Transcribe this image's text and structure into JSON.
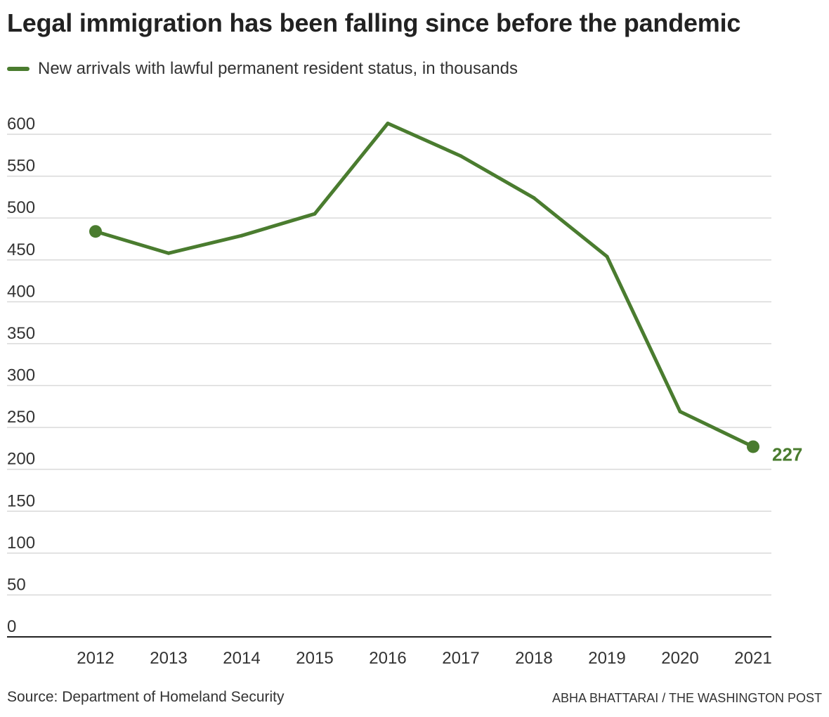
{
  "title": "Legal immigration has been falling since before the pandemic",
  "legend": {
    "label": "New arrivals with lawful permanent resident status, in thousands"
  },
  "source": "Source: Department of Homeland Security",
  "credit": "ABHA BHATTARAI / THE WASHINGTON POST",
  "colors": {
    "series": "#4a7c2f",
    "grid": "#d9d9d9",
    "axis": "#222222",
    "text": "#333333"
  },
  "chart_data": {
    "type": "line",
    "title": "Legal immigration has been falling since before the pandemic",
    "xlabel": "",
    "ylabel": "",
    "x": [
      "2012",
      "2013",
      "2014",
      "2015",
      "2016",
      "2017",
      "2018",
      "2019",
      "2020",
      "2021"
    ],
    "series": [
      {
        "name": "New arrivals with lawful permanent resident status, in thousands",
        "values": [
          484,
          458,
          479,
          505,
          613,
          574,
          524,
          454,
          269,
          227
        ]
      }
    ],
    "ylim": [
      0,
      600
    ],
    "yticks": [
      0,
      50,
      100,
      150,
      200,
      250,
      300,
      350,
      400,
      450,
      500,
      550,
      600
    ],
    "grid": true,
    "legend_position": "top-left",
    "endpoint_markers": true,
    "end_label": "227"
  }
}
